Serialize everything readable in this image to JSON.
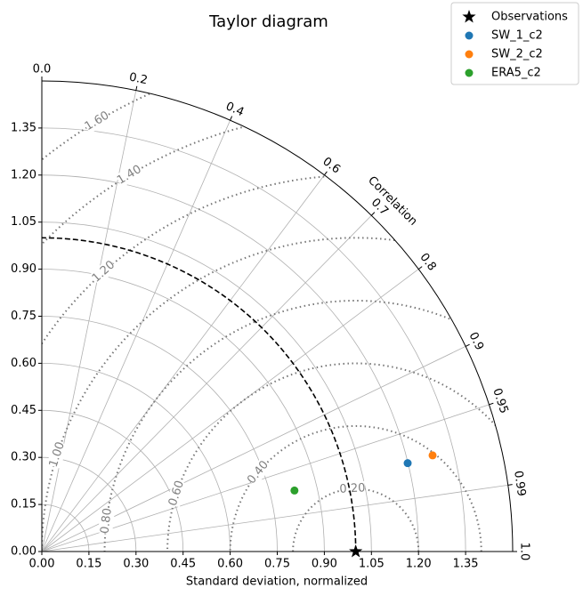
{
  "chart_data": {
    "type": "taylor",
    "title": "Taylor diagram",
    "xlabel": "Standard deviation, normalized",
    "corr_label": "Correlation",
    "xlim": [
      0,
      1.5
    ],
    "ylim": [
      0,
      1.5
    ],
    "xticks": [
      {
        "value": 0,
        "label": "0.00"
      },
      {
        "value": 0.15,
        "label": "0.15"
      },
      {
        "value": 0.3,
        "label": "0.30"
      },
      {
        "value": 0.45,
        "label": "0.45"
      },
      {
        "value": 0.6,
        "label": "0.60"
      },
      {
        "value": 0.75,
        "label": "0.75"
      },
      {
        "value": 0.9,
        "label": "0.90"
      },
      {
        "value": 1.05,
        "label": "1.05"
      },
      {
        "value": 1.2,
        "label": "1.20"
      },
      {
        "value": 1.35,
        "label": "1.35"
      }
    ],
    "yticks": [
      {
        "value": 0,
        "label": "0.00"
      },
      {
        "value": 0.15,
        "label": "0.15"
      },
      {
        "value": 0.3,
        "label": "0.30"
      },
      {
        "value": 0.45,
        "label": "0.45"
      },
      {
        "value": 0.6,
        "label": "0.60"
      },
      {
        "value": 0.75,
        "label": "0.75"
      },
      {
        "value": 0.9,
        "label": "0.90"
      },
      {
        "value": 1.05,
        "label": "1.05"
      },
      {
        "value": 1.2,
        "label": "1.20"
      },
      {
        "value": 1.35,
        "label": "1.35"
      }
    ],
    "corr_ticks": [
      {
        "value": 0,
        "label": "0.0"
      },
      0.2,
      0.4,
      0.6,
      0.7,
      0.8,
      0.9,
      0.95,
      0.99,
      {
        "value": 1,
        "label": "1.0"
      }
    ],
    "rmsd_contours": [
      {
        "value": 0.2,
        "label": "0.20"
      },
      {
        "value": 0.4,
        "label": "0.40"
      },
      {
        "value": 0.6,
        "label": "0.60"
      },
      {
        "value": 0.8,
        "label": "0.80"
      },
      {
        "value": 1.0,
        "label": "1.00"
      },
      {
        "value": 1.2,
        "label": "1.20"
      },
      {
        "value": 1.4,
        "label": "1.40"
      },
      {
        "value": 1.6,
        "label": "1.60"
      }
    ],
    "grid": true,
    "legend": "upper right",
    "series": [
      {
        "name": "Observations",
        "color": "#000000",
        "marker": "star",
        "std": 1.0,
        "correlation": 1.0
      },
      {
        "name": "SW_1_c2",
        "color": "#1f77b4",
        "marker": "circle",
        "std": 1.199,
        "correlation": 0.972
      },
      {
        "name": "SW_2_c2",
        "color": "#ff7f0e",
        "marker": "circle",
        "std": 1.282,
        "correlation": 0.971
      },
      {
        "name": "ERA5_c2",
        "color": "#2ca02c",
        "marker": "circle",
        "std": 0.828,
        "correlation": 0.972
      }
    ]
  }
}
